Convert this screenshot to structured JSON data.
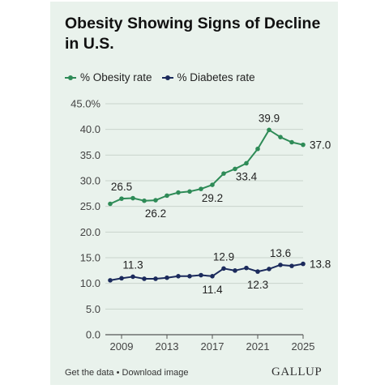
{
  "card": {
    "title": "Obesity Showing Signs of Decline in U.S.",
    "footer": {
      "get_data": "Get the data",
      "separator": "•",
      "download": "Download image"
    },
    "logo": "GALLUP"
  },
  "colors": {
    "obesity": "#2e8b57",
    "diabetes": "#1b2a5c",
    "background": "#e9f2ec",
    "grid": "#c9d4cc"
  },
  "chart_data": {
    "type": "line",
    "title": "Obesity Showing Signs of Decline in U.S.",
    "xlabel": "",
    "ylabel": "",
    "ylim": [
      0,
      45
    ],
    "xlim": [
      2008,
      2025
    ],
    "grid": true,
    "legend_position": "top-left",
    "y_ticks": [
      "0.0",
      "5.0",
      "10.0",
      "15.0",
      "20.0",
      "25.0",
      "30.0",
      "35.0",
      "40.0",
      "45.0%"
    ],
    "x_ticks": [
      "2009",
      "2013",
      "2017",
      "2021",
      "2025"
    ],
    "x": [
      2008,
      2009,
      2010,
      2011,
      2012,
      2013,
      2014,
      2015,
      2016,
      2017,
      2018,
      2019,
      2020,
      2021,
      2022,
      2023,
      2024,
      2025
    ],
    "series": [
      {
        "name": "% Obesity rate",
        "values": [
          25.5,
          26.5,
          26.6,
          26.1,
          26.2,
          27.1,
          27.7,
          27.9,
          28.4,
          29.2,
          31.4,
          32.3,
          33.4,
          36.2,
          39.9,
          38.5,
          37.5,
          37.0
        ]
      },
      {
        "name": "% Diabetes rate",
        "values": [
          10.6,
          11.0,
          11.3,
          10.9,
          10.9,
          11.1,
          11.4,
          11.4,
          11.6,
          11.4,
          12.9,
          12.5,
          13.0,
          12.3,
          12.8,
          13.6,
          13.4,
          13.8
        ]
      }
    ],
    "annotations": [
      {
        "series": 0,
        "x": 2009,
        "text": "26.5",
        "pos": "above"
      },
      {
        "series": 0,
        "x": 2012,
        "text": "26.2",
        "pos": "below"
      },
      {
        "series": 0,
        "x": 2017,
        "text": "29.2",
        "pos": "below"
      },
      {
        "series": 0,
        "x": 2020,
        "text": "33.4",
        "pos": "below"
      },
      {
        "series": 0,
        "x": 2022,
        "text": "39.9",
        "pos": "above"
      },
      {
        "series": 0,
        "x": 2025,
        "text": "37.0",
        "pos": "right"
      },
      {
        "series": 1,
        "x": 2010,
        "text": "11.3",
        "pos": "above"
      },
      {
        "series": 1,
        "x": 2017,
        "text": "11.4",
        "pos": "below"
      },
      {
        "series": 1,
        "x": 2018,
        "text": "12.9",
        "pos": "above"
      },
      {
        "series": 1,
        "x": 2021,
        "text": "12.3",
        "pos": "below"
      },
      {
        "series": 1,
        "x": 2023,
        "text": "13.6",
        "pos": "above"
      },
      {
        "series": 1,
        "x": 2025,
        "text": "13.8",
        "pos": "right"
      }
    ]
  }
}
